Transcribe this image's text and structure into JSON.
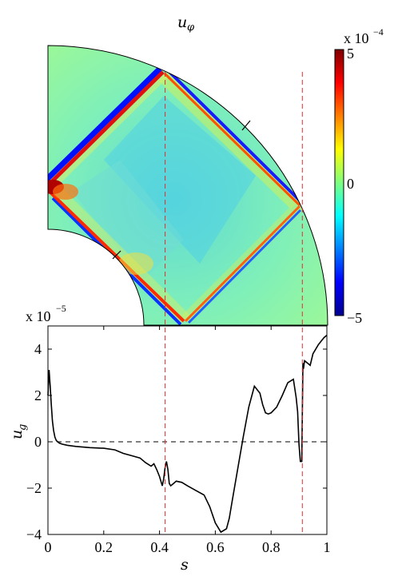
{
  "chart_data": [
    {
      "type": "heatmap",
      "title": "u_φ",
      "title_main": "u",
      "title_sub": "φ",
      "geometry": "quarter annulus (meridional plane)",
      "colormap": "jet",
      "colorbar": {
        "multiplier_prefix": "x 10",
        "multiplier_exponent": "−4",
        "range": [
          -5,
          5
        ],
        "ticks": [
          "5",
          "0",
          "−5"
        ]
      },
      "features": [
        "red/blue shear layers reflecting inside annulus (rectangular ray path)",
        "dashed red vertical lines at s≈0.42 and s≈0.91",
        "black tick marks on inner and outer boundaries"
      ]
    },
    {
      "type": "line",
      "xlabel": "s",
      "ylabel": "u_g",
      "ylabel_main": "u",
      "ylabel_sub": "g",
      "multiplier_prefix": "x 10",
      "multiplier_exponent": "−5",
      "xlim": [
        0,
        1
      ],
      "ylim": [
        -4,
        5
      ],
      "xticks": [
        "0",
        "0.2",
        "0.4",
        "0.6",
        "0.8",
        "1"
      ],
      "yticks": [
        "4",
        "2",
        "0",
        "−2",
        "−4"
      ],
      "zero_line": "dashed black",
      "vlines": [
        0.42,
        0.912
      ],
      "series": [
        {
          "x": [
            0.0,
            0.004,
            0.008,
            0.012,
            0.016,
            0.02,
            0.025,
            0.03,
            0.04,
            0.05,
            0.07,
            0.1,
            0.15,
            0.2,
            0.24,
            0.27,
            0.3,
            0.33,
            0.35,
            0.37,
            0.38,
            0.39,
            0.4,
            0.405,
            0.41,
            0.415,
            0.42,
            0.425,
            0.43,
            0.435,
            0.44,
            0.45,
            0.46,
            0.48,
            0.5,
            0.53,
            0.56,
            0.58,
            0.6,
            0.62,
            0.64,
            0.65,
            0.66,
            0.68,
            0.7,
            0.72,
            0.74,
            0.76,
            0.77,
            0.78,
            0.79,
            0.8,
            0.82,
            0.84,
            0.86,
            0.88,
            0.89,
            0.895,
            0.9,
            0.905,
            0.91,
            0.912,
            0.914,
            0.916,
            0.92,
            0.93,
            0.94,
            0.95,
            0.97,
            0.99,
            1.0
          ],
          "y": [
            2.0,
            3.1,
            2.4,
            1.6,
            0.9,
            0.5,
            0.2,
            0.05,
            -0.05,
            -0.1,
            -0.15,
            -0.2,
            -0.25,
            -0.28,
            -0.35,
            -0.5,
            -0.6,
            -0.7,
            -0.9,
            -1.05,
            -0.95,
            -1.2,
            -1.5,
            -1.7,
            -1.9,
            -1.6,
            -1.1,
            -0.85,
            -1.2,
            -1.8,
            -1.9,
            -1.8,
            -1.7,
            -1.75,
            -1.9,
            -2.1,
            -2.3,
            -2.8,
            -3.5,
            -3.9,
            -3.75,
            -3.3,
            -2.6,
            -1.2,
            0.2,
            1.5,
            2.4,
            2.1,
            1.6,
            1.25,
            1.2,
            1.25,
            1.5,
            2.0,
            2.55,
            2.7,
            1.9,
            1.3,
            -0.1,
            -0.85,
            -0.85,
            1.2,
            3.4,
            3.15,
            3.5,
            3.4,
            3.3,
            3.8,
            4.2,
            4.5,
            4.6
          ]
        }
      ]
    }
  ]
}
